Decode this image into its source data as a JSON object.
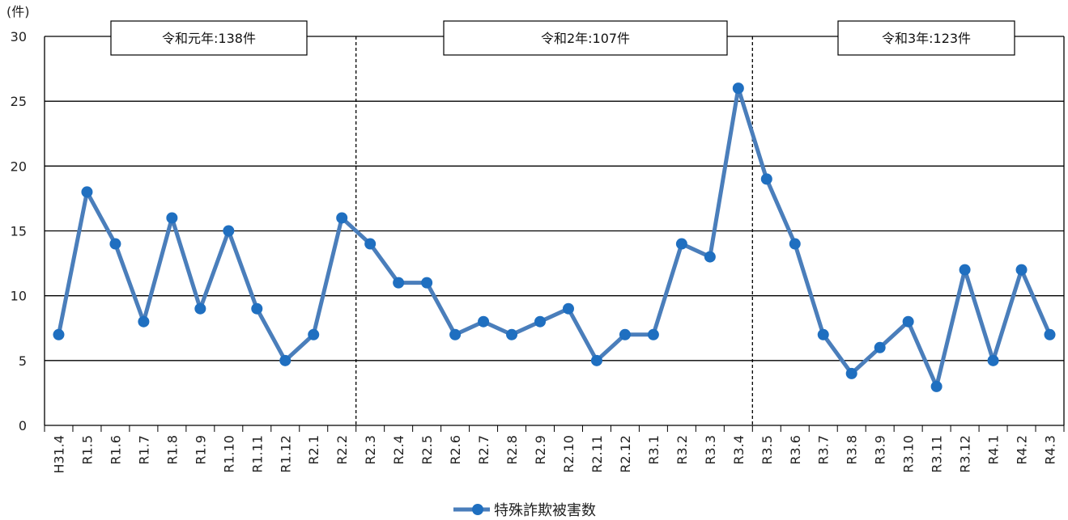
{
  "chart_data": {
    "type": "line",
    "y_unit": "(件)",
    "ylim": [
      0,
      30
    ],
    "yticks": [
      0,
      5,
      10,
      15,
      20,
      25,
      30
    ],
    "grid": true,
    "categories": [
      "H31.4",
      "R1.5",
      "R1.6",
      "R1.7",
      "R1.8",
      "R1.9",
      "R1.10",
      "R1.11",
      "R1.12",
      "R2.1",
      "R2.2",
      "R2.3",
      "R2.4",
      "R2.5",
      "R2.6",
      "R2.7",
      "R2.8",
      "R2.9",
      "R2.10",
      "R2.11",
      "R2.12",
      "R3.1",
      "R3.2",
      "R3.3",
      "R3.4",
      "R3.5",
      "R3.6",
      "R3.7",
      "R3.8",
      "R3.9",
      "R3.10",
      "R3.11",
      "R3.12",
      "R4.1",
      "R4.2",
      "R4.3"
    ],
    "series": [
      {
        "name": "特殊詐欺被害数",
        "color": "#4a7ebb",
        "marker_color": "#1f6fc0",
        "values": [
          7,
          18,
          14,
          8,
          16,
          9,
          15,
          9,
          5,
          7,
          16,
          14,
          11,
          11,
          7,
          8,
          7,
          8,
          9,
          5,
          7,
          7,
          14,
          13,
          26,
          19,
          14,
          7,
          4,
          6,
          8,
          3,
          12,
          5,
          12,
          7
        ]
      }
    ],
    "period_boxes": [
      {
        "label": "令和元年:138件"
      },
      {
        "label": "令和2年:107件"
      },
      {
        "label": "令和3年:123件"
      }
    ],
    "period_dividers_between": [
      [
        "R2.2",
        "R2.3"
      ],
      [
        "R3.4",
        "R3.5"
      ]
    ],
    "legend_position": "bottom-center"
  }
}
